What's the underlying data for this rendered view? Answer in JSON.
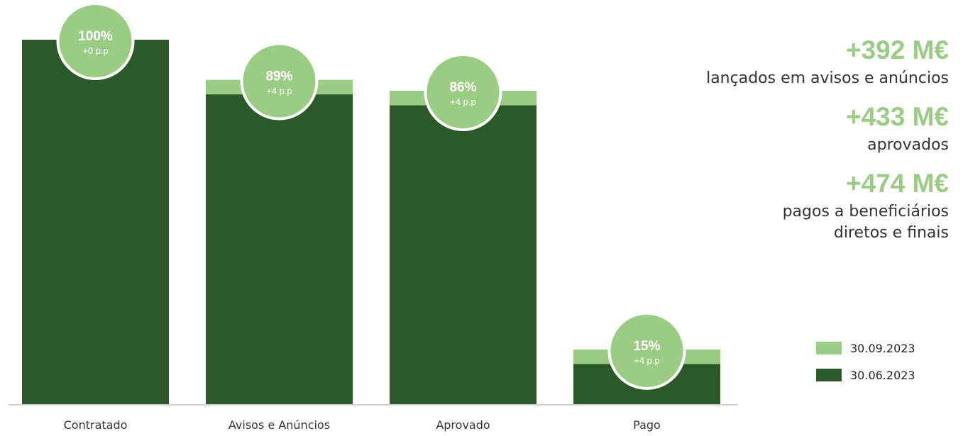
{
  "colors": {
    "dark_green": "#2b5a28",
    "light_green": "#9bcc84",
    "bubble": "#9bcc84",
    "text": "#333333"
  },
  "chart_data": {
    "type": "bar",
    "stacked": true,
    "categories": [
      "Contratado",
      "Avisos e Anúncios",
      "Aprovado",
      "Pago"
    ],
    "series": [
      {
        "name": "30.06.2023",
        "values": [
          100,
          85,
          82,
          11
        ]
      },
      {
        "name": "30.09.2023",
        "values": [
          0,
          4,
          4,
          4
        ]
      }
    ],
    "data_labels": [
      {
        "pct": "100%",
        "delta": "+0 p.p"
      },
      {
        "pct": "89%",
        "delta": "+4 p.p"
      },
      {
        "pct": "86%",
        "delta": "+4 p.p"
      },
      {
        "pct": "15%",
        "delta": "+4 p.p"
      }
    ],
    "ylim": [
      0,
      100
    ],
    "title": "",
    "xlabel": "",
    "ylabel": "",
    "legend_position": "bottom-right",
    "grid": false
  },
  "stats": [
    {
      "value": "+392 M€",
      "description": "lançados em avisos e anúncios"
    },
    {
      "value": "+433 M€",
      "description": "aprovados"
    },
    {
      "value": "+474 M€",
      "description": "pagos a beneficiários diretos e finais"
    }
  ],
  "legend": [
    {
      "label": "30.09.2023",
      "color": "#9bcc84"
    },
    {
      "label": "30.06.2023",
      "color": "#2b5a28"
    }
  ]
}
